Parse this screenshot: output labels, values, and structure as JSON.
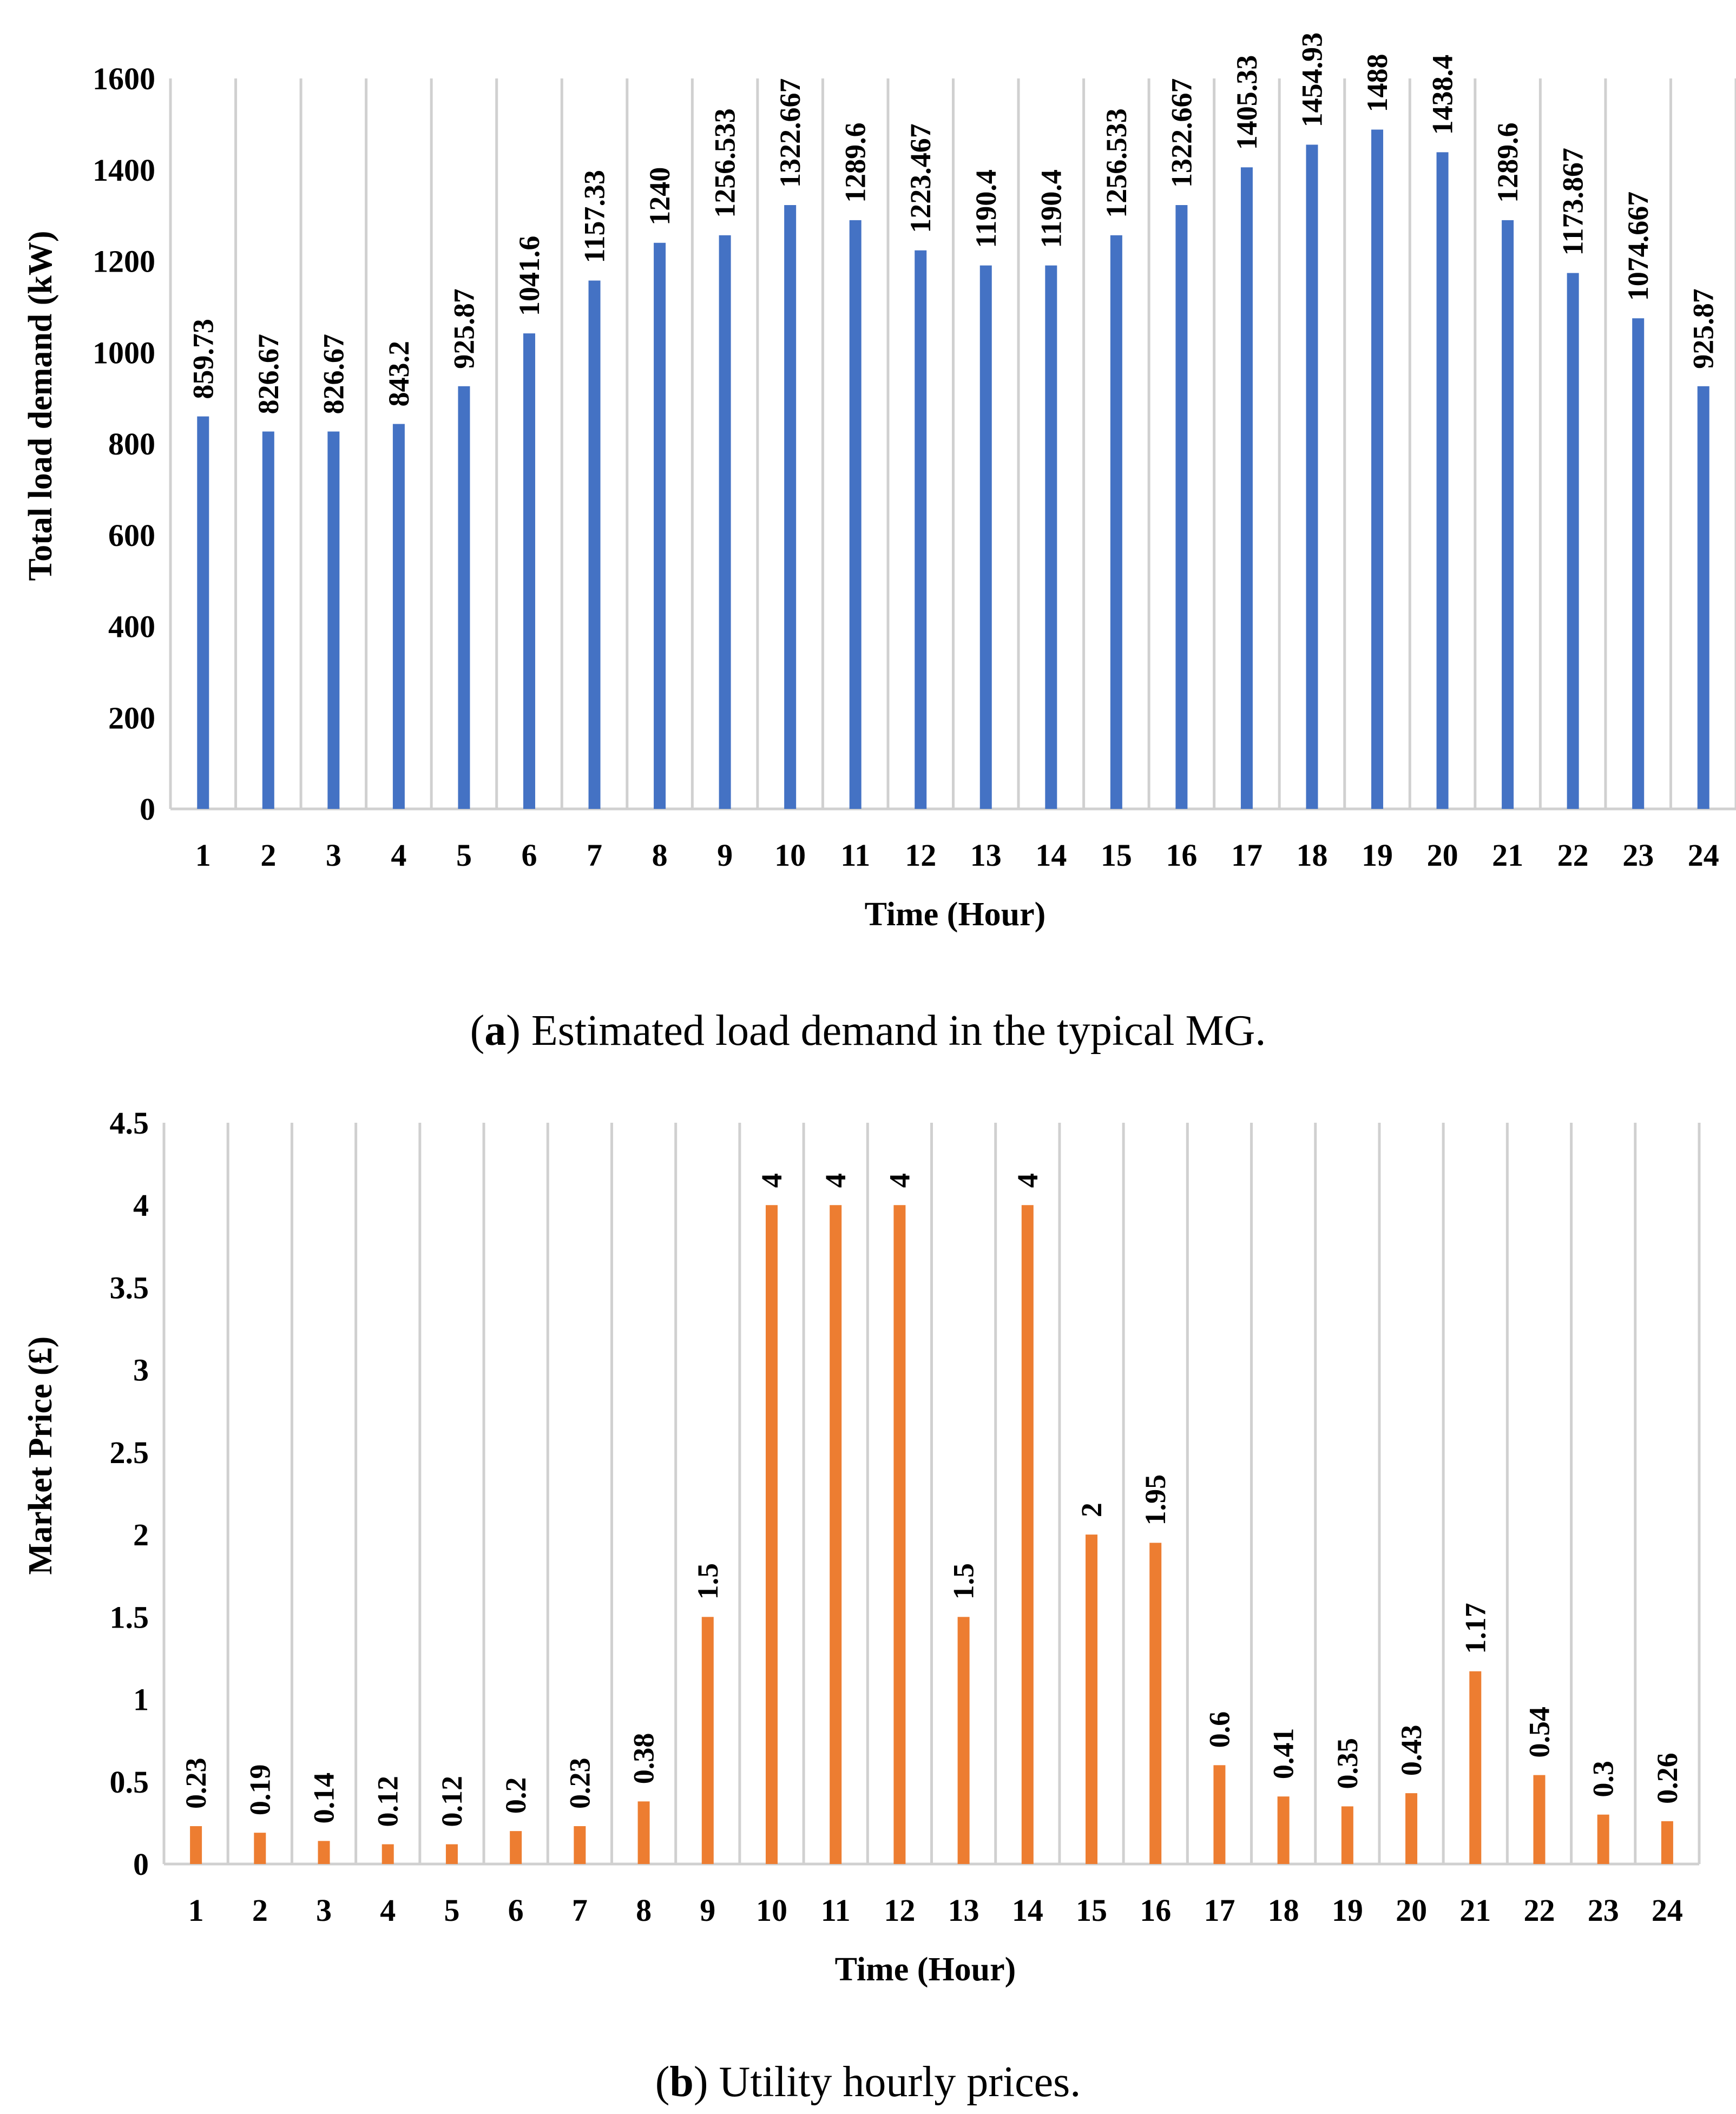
{
  "chart_data": [
    {
      "type": "bar",
      "title": "",
      "xlabel": "Time (Hour)",
      "ylabel": "Total load demand (kW)",
      "ylim": [
        0,
        1600
      ],
      "yticks": [
        "0",
        "200",
        "400",
        "600",
        "800",
        "1000",
        "1200",
        "1400",
        "1600"
      ],
      "grid": "vertical",
      "color": "#4472C4",
      "categories": [
        "1",
        "2",
        "3",
        "4",
        "5",
        "6",
        "7",
        "8",
        "9",
        "10",
        "11",
        "12",
        "13",
        "14",
        "15",
        "16",
        "17",
        "18",
        "19",
        "20",
        "21",
        "22",
        "23",
        "24"
      ],
      "values": [
        859.73,
        826.67,
        826.67,
        843.2,
        925.87,
        1041.6,
        1157.33,
        1240,
        1256.533,
        1322.667,
        1289.6,
        1223.467,
        1190.4,
        1190.4,
        1256.533,
        1322.667,
        1405.33,
        1454.93,
        1488,
        1438.4,
        1289.6,
        1173.867,
        1074.667,
        925.87
      ],
      "data_labels": [
        "859.73",
        "826.67",
        "826.67",
        "843.2",
        "925.87",
        "1041.6",
        "1157.33",
        "1240",
        "1256.533",
        "1322.667",
        "1289.6",
        "1223.467",
        "1190.4",
        "1190.4",
        "1256.533",
        "1322.667",
        "1405.33",
        "1454.93",
        "1488",
        "1438.4",
        "1289.6",
        "1173.867",
        "1074.667",
        "925.87"
      ],
      "caption_letter": "a",
      "caption_text": " Estimated load demand in the typical MG."
    },
    {
      "type": "bar",
      "title": "",
      "xlabel": "Time (Hour)",
      "ylabel": "Market Price (£)",
      "ylim": [
        0,
        4.5
      ],
      "yticks": [
        "0",
        "0.5",
        "1",
        "1.5",
        "2",
        "2.5",
        "3",
        "3.5",
        "4",
        "4.5"
      ],
      "grid": "vertical",
      "color": "#ED7D31",
      "categories": [
        "1",
        "2",
        "3",
        "4",
        "5",
        "6",
        "7",
        "8",
        "9",
        "10",
        "11",
        "12",
        "13",
        "14",
        "15",
        "16",
        "17",
        "18",
        "19",
        "20",
        "21",
        "22",
        "23",
        "24"
      ],
      "values": [
        0.23,
        0.19,
        0.14,
        0.12,
        0.12,
        0.2,
        0.23,
        0.38,
        1.5,
        4,
        4,
        4,
        1.5,
        4,
        2,
        1.95,
        0.6,
        0.41,
        0.35,
        0.43,
        1.17,
        0.54,
        0.3,
        0.26
      ],
      "data_labels": [
        "0.23",
        "0.19",
        "0.14",
        "0.12",
        "0.12",
        "0.2",
        "0.23",
        "0.38",
        "1.5",
        "4",
        "4",
        "4",
        "1.5",
        "4",
        "2",
        "1.95",
        "0.6",
        "0.41",
        "0.35",
        "0.43",
        "1.17",
        "0.54",
        "0.3",
        "0.26"
      ],
      "caption_letter": "b",
      "caption_text": " Utility hourly prices."
    }
  ]
}
